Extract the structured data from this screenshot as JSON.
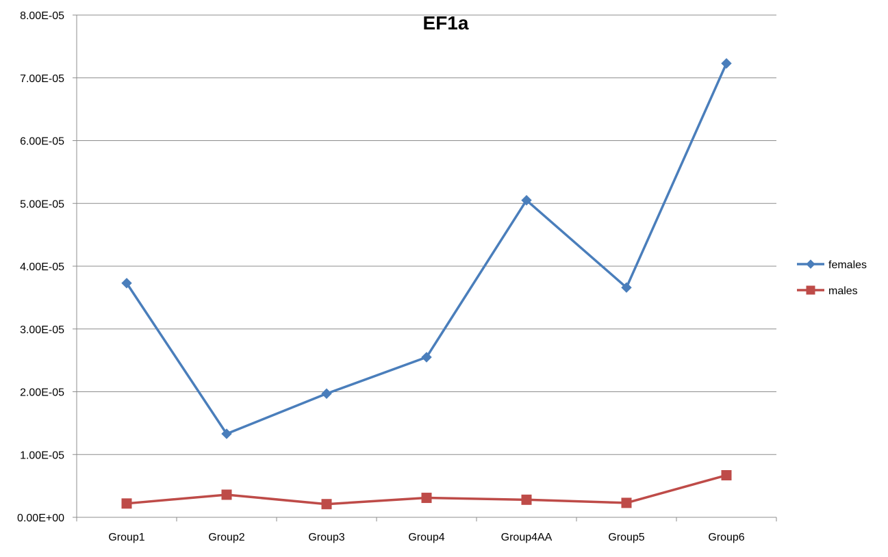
{
  "chart_data": {
    "type": "line",
    "title": "EF1a",
    "xlabel": "",
    "ylabel": "",
    "categories": [
      "Group1",
      "Group2",
      "Group3",
      "Group4",
      "Group4AA",
      "Group5",
      "Group6"
    ],
    "y_tick_labels": [
      "0.00E+00",
      "1.00E-05",
      "2.00E-05",
      "3.00E-05",
      "4.00E-05",
      "5.00E-05",
      "6.00E-05",
      "7.00E-05",
      "8.00E-05"
    ],
    "ylim": [
      0,
      8e-05
    ],
    "ytick_step": 1e-05,
    "grid": true,
    "legend_position": "right",
    "series": [
      {
        "name": "females",
        "color": "#4a7ebb",
        "marker": "diamond",
        "values": [
          3.73e-05,
          1.33e-05,
          1.97e-05,
          2.55e-05,
          5.05e-05,
          3.66e-05,
          7.23e-05
        ]
      },
      {
        "name": "males",
        "color": "#be4b48",
        "marker": "square",
        "values": [
          2.2e-06,
          3.6e-06,
          2.1e-06,
          3.1e-06,
          2.8e-06,
          2.3e-06,
          6.7e-06
        ]
      }
    ]
  }
}
